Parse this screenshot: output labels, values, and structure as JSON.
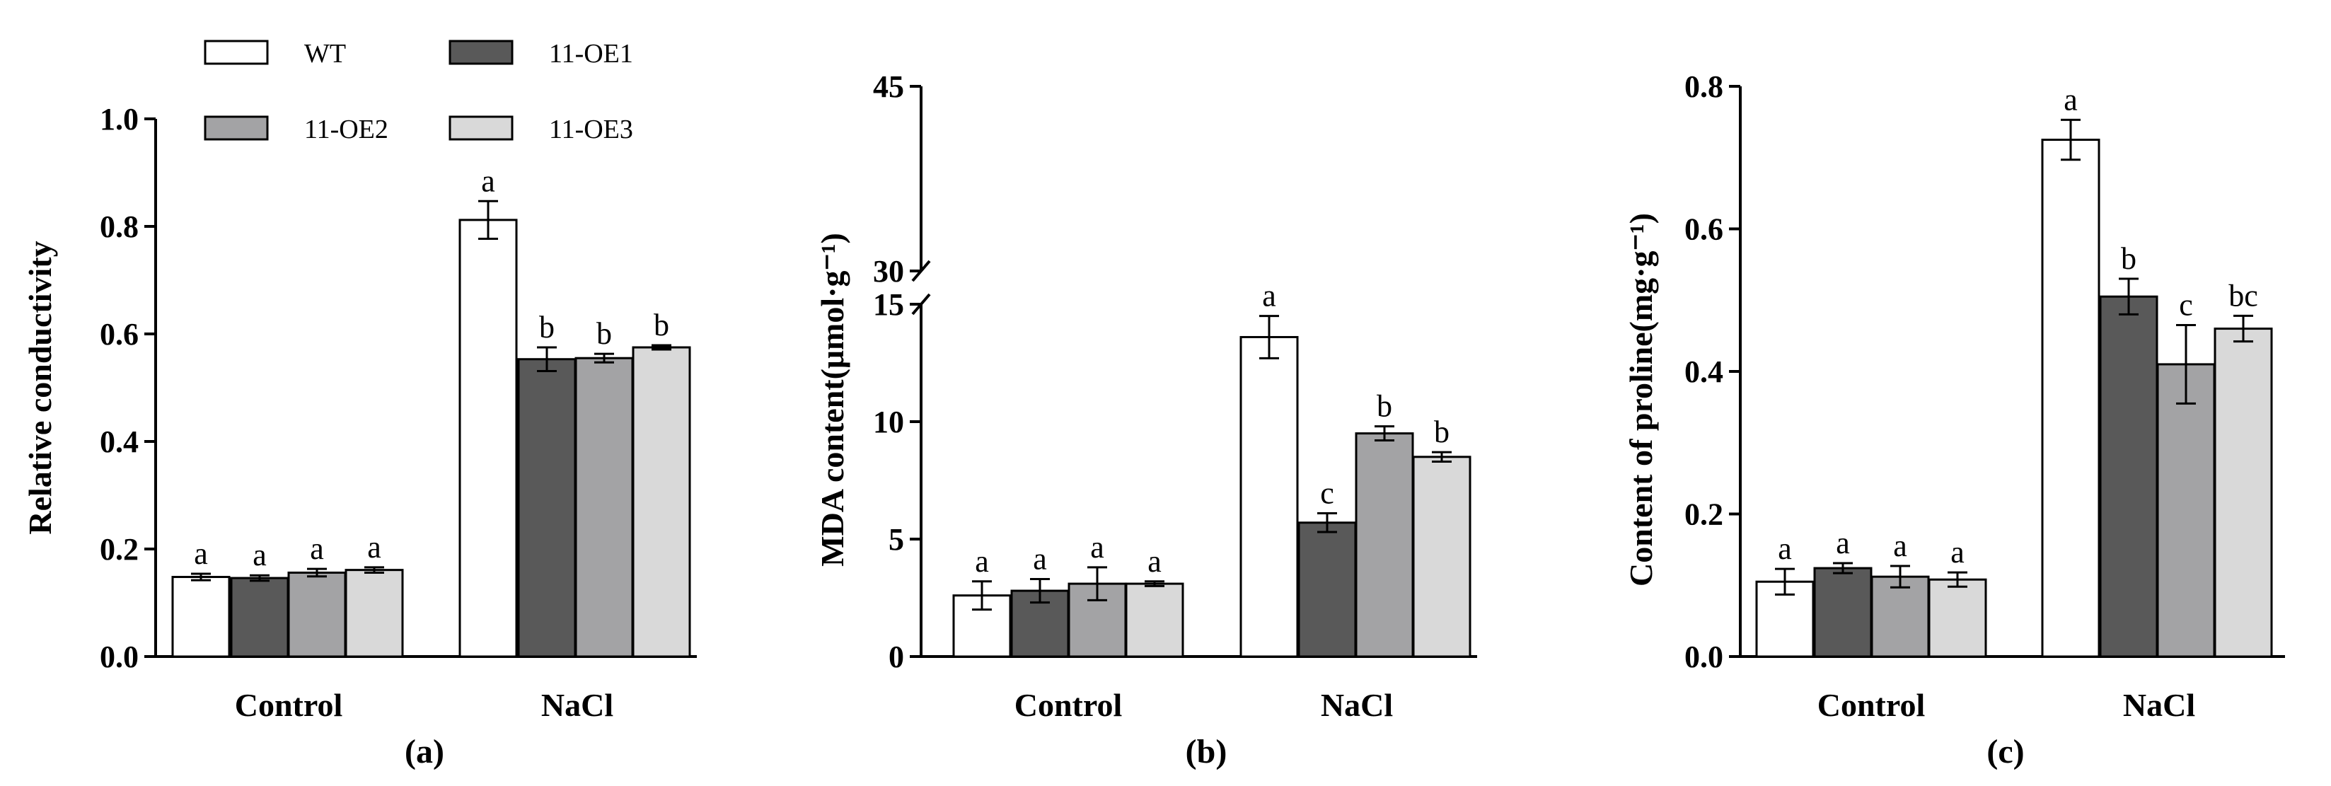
{
  "chart_data": [
    {
      "type": "bar",
      "panel_label": "(a)",
      "ylabel": "Relative conductivity",
      "ylim": [
        0,
        1.0
      ],
      "yticks": [
        "0.0",
        "0.2",
        "0.4",
        "0.6",
        "0.8",
        "1.0"
      ],
      "categories": [
        "Control",
        "NaCl"
      ],
      "series": [
        {
          "name": "WT",
          "values": [
            0.148,
            0.812
          ],
          "errors": [
            0.006,
            0.035
          ],
          "letters": [
            "a",
            "a"
          ]
        },
        {
          "name": "11-OE1",
          "values": [
            0.146,
            0.553
          ],
          "errors": [
            0.005,
            0.022
          ],
          "letters": [
            "a",
            "b"
          ]
        },
        {
          "name": "11-OE2",
          "values": [
            0.156,
            0.555
          ],
          "errors": [
            0.007,
            0.008
          ],
          "letters": [
            "a",
            "b"
          ]
        },
        {
          "name": "11-OE3",
          "values": [
            0.161,
            0.575
          ],
          "errors": [
            0.005,
            0.004
          ],
          "letters": [
            "a",
            "b"
          ]
        }
      ]
    },
    {
      "type": "bar",
      "panel_label": "(b)",
      "ylabel": "MDA content(μmol·g⁻¹)",
      "ylim": [
        0,
        45
      ],
      "axis_break": [
        15,
        30
      ],
      "yticks": [
        "0",
        "5",
        "10",
        "15",
        "30",
        "45"
      ],
      "categories": [
        "Control",
        "NaCl"
      ],
      "series": [
        {
          "name": "WT",
          "values": [
            2.6,
            13.6
          ],
          "errors": [
            0.6,
            0.9
          ],
          "letters": [
            "a",
            "a"
          ]
        },
        {
          "name": "11-OE1",
          "values": [
            2.8,
            5.7
          ],
          "errors": [
            0.5,
            0.4
          ],
          "letters": [
            "a",
            "c"
          ]
        },
        {
          "name": "11-OE2",
          "values": [
            3.1,
            9.5
          ],
          "errors": [
            0.7,
            0.3
          ],
          "letters": [
            "a",
            "b"
          ]
        },
        {
          "name": "11-OE3",
          "values": [
            3.1,
            8.5
          ],
          "errors": [
            0.1,
            0.2
          ],
          "letters": [
            "a",
            "b"
          ]
        }
      ]
    },
    {
      "type": "bar",
      "panel_label": "(c)",
      "ylabel": "Content of proline(mg·g⁻¹)",
      "ylim": [
        0,
        0.8
      ],
      "yticks": [
        "0.0",
        "0.2",
        "0.4",
        "0.6",
        "0.8"
      ],
      "categories": [
        "Control",
        "NaCl"
      ],
      "series": [
        {
          "name": "WT",
          "values": [
            0.105,
            0.725
          ],
          "errors": [
            0.018,
            0.028
          ],
          "letters": [
            "a",
            "a"
          ]
        },
        {
          "name": "11-OE1",
          "values": [
            0.124,
            0.505
          ],
          "errors": [
            0.007,
            0.025
          ],
          "letters": [
            "a",
            "b"
          ]
        },
        {
          "name": "11-OE2",
          "values": [
            0.112,
            0.41
          ],
          "errors": [
            0.015,
            0.055
          ],
          "letters": [
            "a",
            "c"
          ]
        },
        {
          "name": "11-OE3",
          "values": [
            0.108,
            0.46
          ],
          "errors": [
            0.01,
            0.018
          ],
          "letters": [
            "a",
            "bc"
          ]
        }
      ]
    }
  ],
  "legend": [
    {
      "name": "WT",
      "color": "#ffffff"
    },
    {
      "name": "11-OE1",
      "color": "#595959"
    },
    {
      "name": "11-OE2",
      "color": "#a3a3a5"
    },
    {
      "name": "11-OE3",
      "color": "#d9d9d9"
    }
  ]
}
